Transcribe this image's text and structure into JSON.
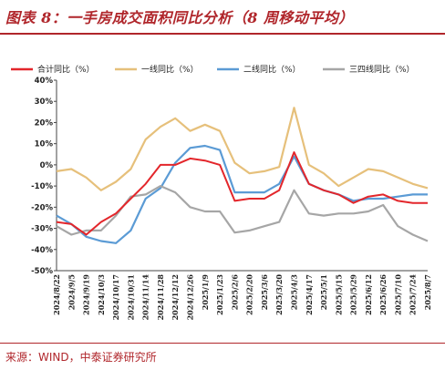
{
  "title": "图表 8：一手房成交面积同比分析（8 周移动平均）",
  "source": "来源：WIND，中泰证券研究所",
  "chart_data": {
    "type": "line",
    "x": [
      "2024/8/22",
      "2024/9/5",
      "2024/9/19",
      "2024/10/3",
      "2024/10/17",
      "2024/10/31",
      "2024/11/14",
      "2024/11/28",
      "2024/12/12",
      "2024/12/26",
      "2025/1/9",
      "2025/1/23",
      "2025/2/6",
      "2025/2/20",
      "2025/3/6",
      "2025/3/20",
      "2025/4/3",
      "2025/4/17",
      "2025/5/1",
      "2025/5/15",
      "2025/5/29",
      "2025/6/12",
      "2025/6/26",
      "2025/7/10",
      "2025/7/24",
      "2025/8/7"
    ],
    "ylim": [
      -50,
      40
    ],
    "yticks": [
      "-50%",
      "-40%",
      "-30%",
      "-20%",
      "-10%",
      "0%",
      "10%",
      "20%",
      "30%",
      "40%"
    ],
    "ytick_values": [
      -50,
      -40,
      -30,
      -20,
      -10,
      0,
      10,
      20,
      30,
      40
    ],
    "grid": false,
    "legend_position": "top",
    "series": [
      {
        "name": "合计同比（%）",
        "color": "#e3262b",
        "values": [
          -27,
          -28,
          -33,
          -27,
          -23,
          -16,
          -9,
          0,
          0,
          3,
          2,
          0,
          -17,
          -16,
          -16,
          -12,
          6,
          -9,
          -12,
          -14,
          -18,
          -15,
          -14,
          -17,
          -18,
          -18
        ]
      },
      {
        "name": "一线同比（%）",
        "color": "#e6c07b",
        "values": [
          -3,
          -2,
          -6,
          -12,
          -8,
          -2,
          12,
          18,
          22,
          16,
          19,
          16,
          1,
          -4,
          -3,
          -1,
          27,
          0,
          -4,
          -10,
          -6,
          -2,
          -3,
          -6,
          -9,
          -11
        ]
      },
      {
        "name": "二线同比（%）",
        "color": "#5b9bd5",
        "values": [
          -24,
          -28,
          -34,
          -36,
          -37,
          -31,
          -16,
          -11,
          1,
          8,
          9,
          7,
          -13,
          -13,
          -13,
          -9,
          4,
          -9,
          -12,
          -14,
          -17,
          -16,
          -16,
          -15,
          -14,
          -14
        ]
      },
      {
        "name": "三四线同比（%）",
        "color": "#a6a6a6",
        "values": [
          -29,
          -33,
          -31,
          -31,
          -24,
          -15,
          -14,
          -10,
          -13,
          -20,
          -22,
          -22,
          -32,
          -31,
          -29,
          -27,
          -12,
          -23,
          -24,
          -23,
          -23,
          -22,
          -19,
          -29,
          -33,
          -36
        ]
      }
    ]
  }
}
